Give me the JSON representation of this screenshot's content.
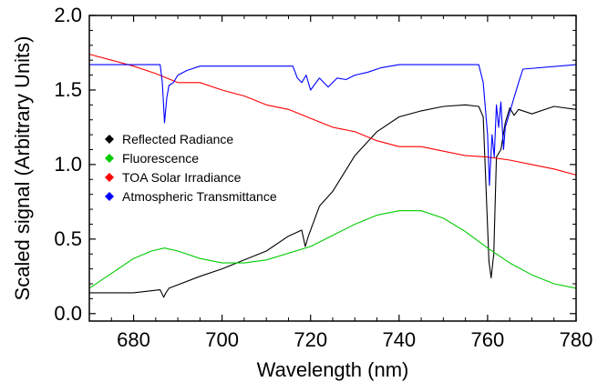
{
  "chart_data": {
    "type": "line",
    "title": "",
    "xlabel": "Wavelength (nm)",
    "ylabel": "Scaled signal (Arbitrary Units)",
    "xlim": [
      670,
      780
    ],
    "ylim": [
      -0.05,
      2.0
    ],
    "xticks": [
      680,
      700,
      720,
      740,
      760,
      780
    ],
    "xtick_labels": [
      "680",
      "700",
      "720",
      "740",
      "760",
      "780"
    ],
    "yticks": [
      0.0,
      0.5,
      1.0,
      1.5,
      2.0
    ],
    "ytick_labels": [
      "0.0",
      "0.5",
      "1.0",
      "1.5",
      "2.0"
    ],
    "grid": false,
    "legend_position": "left-middle",
    "series": [
      {
        "name": "Reflected Radiance",
        "color": "#000000",
        "x": [
          670,
          675,
          680,
          686,
          686.8,
          687.3,
          688,
          695,
          700,
          705,
          710,
          715,
          718,
          718.8,
          719.5,
          722,
          725,
          730,
          735,
          740,
          745,
          750,
          755,
          758,
          759,
          760.3,
          760.8,
          761.4,
          762,
          763,
          764,
          765,
          766,
          767,
          770,
          775,
          780
        ],
        "y": [
          0.14,
          0.14,
          0.14,
          0.16,
          0.11,
          0.14,
          0.17,
          0.25,
          0.3,
          0.36,
          0.42,
          0.52,
          0.56,
          0.45,
          0.52,
          0.72,
          0.82,
          1.06,
          1.22,
          1.32,
          1.36,
          1.39,
          1.4,
          1.39,
          1.32,
          0.35,
          0.24,
          0.4,
          1.05,
          1.1,
          1.28,
          1.38,
          1.33,
          1.37,
          1.34,
          1.39,
          1.37
        ]
      },
      {
        "name": "Fluorescence",
        "color": "#00cc00",
        "x": [
          670,
          675,
          680,
          684,
          687,
          690,
          695,
          700,
          705,
          710,
          720,
          730,
          735,
          740,
          745,
          750,
          755,
          760,
          765,
          770,
          775,
          780
        ],
        "y": [
          0.17,
          0.27,
          0.37,
          0.42,
          0.44,
          0.42,
          0.37,
          0.34,
          0.34,
          0.36,
          0.45,
          0.6,
          0.66,
          0.69,
          0.69,
          0.64,
          0.55,
          0.44,
          0.34,
          0.26,
          0.2,
          0.17
        ]
      },
      {
        "name": "TOA Solar Irradiance",
        "color": "#ff0000",
        "x": [
          670,
          675,
          680,
          685,
          690,
          695,
          700,
          705,
          710,
          715,
          720,
          725,
          730,
          735,
          740,
          745,
          750,
          755,
          760,
          765,
          770,
          775,
          780
        ],
        "y": [
          1.74,
          1.7,
          1.66,
          1.61,
          1.55,
          1.55,
          1.5,
          1.46,
          1.4,
          1.37,
          1.31,
          1.25,
          1.22,
          1.16,
          1.12,
          1.12,
          1.09,
          1.06,
          1.05,
          1.03,
          1.0,
          0.97,
          0.93
        ]
      },
      {
        "name": "Atmospheric Transmittance",
        "color": "#0000ff",
        "x": [
          670,
          686,
          686.5,
          687,
          687.5,
          688,
          689,
          690,
          692,
          695,
          716,
          717,
          718,
          719,
          720,
          722,
          724,
          726,
          728,
          730,
          733,
          736,
          740,
          758,
          759,
          760,
          760.4,
          761,
          761.5,
          762,
          762.5,
          763,
          763.6,
          764,
          765,
          766,
          767,
          768,
          780
        ],
        "y": [
          1.67,
          1.67,
          1.55,
          1.28,
          1.45,
          1.53,
          1.55,
          1.6,
          1.63,
          1.66,
          1.66,
          1.58,
          1.55,
          1.6,
          1.5,
          1.58,
          1.52,
          1.58,
          1.57,
          1.6,
          1.62,
          1.65,
          1.67,
          1.67,
          1.55,
          1.2,
          0.86,
          1.2,
          1.05,
          1.4,
          1.25,
          1.42,
          1.1,
          1.25,
          1.35,
          1.45,
          1.55,
          1.64,
          1.67
        ]
      }
    ]
  }
}
